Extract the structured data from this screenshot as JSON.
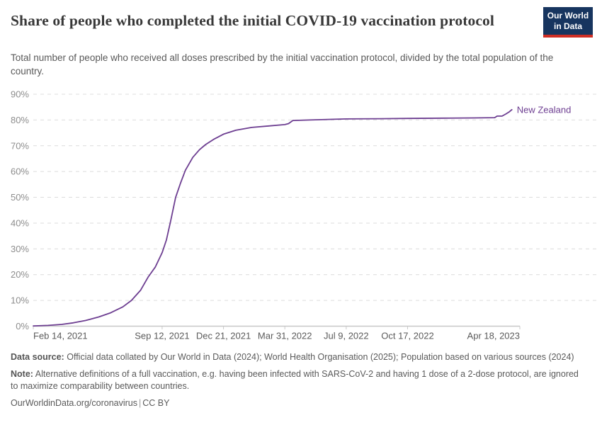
{
  "header": {
    "title": "Share of people who completed the initial COVID-19 vaccination protocol",
    "subtitle": "Total number of people who received all doses prescribed by the initial vaccination protocol, divided by the total population of the country.",
    "logo": {
      "line1": "Our World",
      "line2": "in Data"
    }
  },
  "chart_data": {
    "type": "line",
    "title": "Share of people who completed the initial COVID-19 vaccination protocol",
    "legend_position": "end-of-line-label",
    "grid": "dashed-horizontal",
    "line_color": "#6d3e91",
    "x_axis": {
      "start_date": "2021-02-14",
      "end_date": "2023-04-18",
      "ticks": [
        {
          "label": "Feb 14, 2021",
          "date": "2021-02-14"
        },
        {
          "label": "Sep 12, 2021",
          "date": "2021-09-12"
        },
        {
          "label": "Dec 21, 2021",
          "date": "2021-12-21"
        },
        {
          "label": "Mar 31, 2022",
          "date": "2022-03-31"
        },
        {
          "label": "Jul 9, 2022",
          "date": "2022-07-09"
        },
        {
          "label": "Oct 17, 2022",
          "date": "2022-10-17"
        },
        {
          "label": "Apr 18, 2023",
          "date": "2023-04-18"
        }
      ]
    },
    "y_axis": {
      "min": 0,
      "max": 90,
      "step": 10,
      "unit": "%",
      "tick_labels": [
        "0%",
        "10%",
        "20%",
        "30%",
        "40%",
        "50%",
        "60%",
        "70%",
        "80%",
        "90%"
      ]
    },
    "series": [
      {
        "name": "New Zealand",
        "color": "#6d3e91",
        "points": [
          [
            "2021-02-14",
            0.1
          ],
          [
            "2021-03-10",
            0.3
          ],
          [
            "2021-04-01",
            0.7
          ],
          [
            "2021-04-20",
            1.3
          ],
          [
            "2021-05-10",
            2.2
          ],
          [
            "2021-06-01",
            3.6
          ],
          [
            "2021-06-20",
            5.2
          ],
          [
            "2021-07-10",
            7.5
          ],
          [
            "2021-07-24",
            10.0
          ],
          [
            "2021-08-08",
            14.0
          ],
          [
            "2021-08-20",
            19.0
          ],
          [
            "2021-09-01",
            23.0
          ],
          [
            "2021-09-12",
            28.5
          ],
          [
            "2021-09-19",
            33.5
          ],
          [
            "2021-09-26",
            41.0
          ],
          [
            "2021-10-04",
            50.0
          ],
          [
            "2021-10-12",
            55.5
          ],
          [
            "2021-10-20",
            60.5
          ],
          [
            "2021-11-01",
            65.5
          ],
          [
            "2021-11-12",
            68.5
          ],
          [
            "2021-11-22",
            70.5
          ],
          [
            "2021-12-05",
            72.5
          ],
          [
            "2021-12-21",
            74.5
          ],
          [
            "2022-01-10",
            76.0
          ],
          [
            "2022-02-05",
            77.1
          ],
          [
            "2022-03-05",
            77.7
          ],
          [
            "2022-03-31",
            78.2
          ],
          [
            "2022-04-06",
            78.6
          ],
          [
            "2022-04-13",
            79.8
          ],
          [
            "2022-05-10",
            80.0
          ],
          [
            "2022-07-09",
            80.4
          ],
          [
            "2022-09-01",
            80.5
          ],
          [
            "2022-10-17",
            80.6
          ],
          [
            "2022-12-15",
            80.7
          ],
          [
            "2023-02-01",
            80.8
          ],
          [
            "2023-03-08",
            80.9
          ],
          [
            "2023-03-12",
            81.5
          ],
          [
            "2023-03-20",
            81.5
          ],
          [
            "2023-03-26",
            82.3
          ],
          [
            "2023-04-01",
            83.2
          ],
          [
            "2023-04-05",
            84.0
          ]
        ]
      }
    ]
  },
  "footer": {
    "data_source_label": "Data source:",
    "data_source_text": "Official data collated by Our World in Data (2024); World Health Organisation (2025); Population based on various sources (2024)",
    "note_label": "Note:",
    "note_text": "Alternative definitions of a full vaccination, e.g. having been infected with SARS-CoV-2 and having 1 dose of a 2-dose protocol, are ignored to maximize comparability between countries.",
    "url": "OurWorldinData.org/coronavirus",
    "separator": "|",
    "license": "CC BY"
  }
}
